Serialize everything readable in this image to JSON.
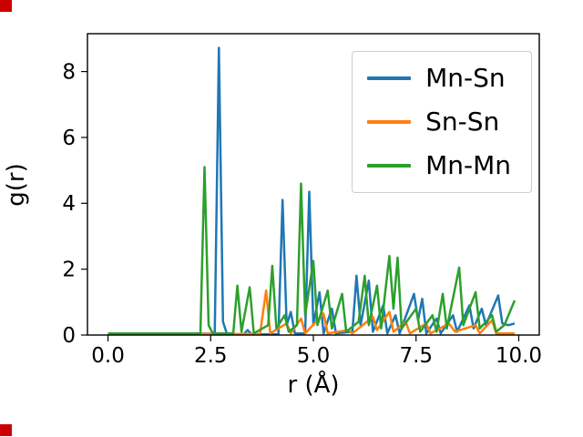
{
  "figure": {
    "background": "#ffffff",
    "corner_marker_color": "#cc0000"
  },
  "chart_data": {
    "type": "line",
    "title": "",
    "xlabel": "r (Å)",
    "ylabel": "g(r)",
    "xlim": [
      -0.5,
      10.5
    ],
    "ylim": [
      0,
      9.15
    ],
    "xticks": [
      0.0,
      2.5,
      5.0,
      7.5,
      10.0
    ],
    "xticklabels": [
      "0.0",
      "2.5",
      "5.0",
      "7.5",
      "10.0"
    ],
    "yticks": [
      0,
      2,
      4,
      6,
      8
    ],
    "yticklabels": [
      "0",
      "2",
      "4",
      "6",
      "8"
    ],
    "grid": false,
    "legend_position": "upper right",
    "series": [
      {
        "name": "Mn-Sn",
        "color": "#1f77b4",
        "points": [
          [
            0,
            0.04
          ],
          [
            2.55,
            0.04
          ],
          [
            2.6,
            0.1
          ],
          [
            2.7,
            8.72
          ],
          [
            2.8,
            0.4
          ],
          [
            2.9,
            0.02
          ],
          [
            3.3,
            0.02
          ],
          [
            3.4,
            0.15
          ],
          [
            3.5,
            0.02
          ],
          [
            4.15,
            0.02
          ],
          [
            4.25,
            4.1
          ],
          [
            4.35,
            0.3
          ],
          [
            4.45,
            0.7
          ],
          [
            4.55,
            0.05
          ],
          [
            4.8,
            0.05
          ],
          [
            4.9,
            4.35
          ],
          [
            5.0,
            0.3
          ],
          [
            5.15,
            1.3
          ],
          [
            5.25,
            0.05
          ],
          [
            5.45,
            0.8
          ],
          [
            5.55,
            0.05
          ],
          [
            5.95,
            0.1
          ],
          [
            6.05,
            1.8
          ],
          [
            6.15,
            0.3
          ],
          [
            6.35,
            1.65
          ],
          [
            6.45,
            0.1
          ],
          [
            6.7,
            0.9
          ],
          [
            6.8,
            0.05
          ],
          [
            7.0,
            0.6
          ],
          [
            7.1,
            0.05
          ],
          [
            7.45,
            1.25
          ],
          [
            7.55,
            0.45
          ],
          [
            7.65,
            1.1
          ],
          [
            7.75,
            0.05
          ],
          [
            8.0,
            0.5
          ],
          [
            8.1,
            0.05
          ],
          [
            8.4,
            0.6
          ],
          [
            8.5,
            0.1
          ],
          [
            8.8,
            0.9
          ],
          [
            8.9,
            0.2
          ],
          [
            9.1,
            0.8
          ],
          [
            9.2,
            0.3
          ],
          [
            9.5,
            1.2
          ],
          [
            9.6,
            0.35
          ],
          [
            9.75,
            0.3
          ],
          [
            9.9,
            0.35
          ]
        ]
      },
      {
        "name": "Sn-Sn",
        "color": "#ff7f0e",
        "points": [
          [
            0,
            0.03
          ],
          [
            3.7,
            0.03
          ],
          [
            3.85,
            1.35
          ],
          [
            3.95,
            0.05
          ],
          [
            4.35,
            0.35
          ],
          [
            4.45,
            0.05
          ],
          [
            4.7,
            0.5
          ],
          [
            4.8,
            0.05
          ],
          [
            5.25,
            0.65
          ],
          [
            5.35,
            0.05
          ],
          [
            5.85,
            0.15
          ],
          [
            5.95,
            0.05
          ],
          [
            6.45,
            0.55
          ],
          [
            6.55,
            0.15
          ],
          [
            6.85,
            0.7
          ],
          [
            6.95,
            0.1
          ],
          [
            7.25,
            0.4
          ],
          [
            7.35,
            0.05
          ],
          [
            7.75,
            0.35
          ],
          [
            7.85,
            0.05
          ],
          [
            8.3,
            0.35
          ],
          [
            8.45,
            0.1
          ],
          [
            8.95,
            0.3
          ],
          [
            9.05,
            0.05
          ],
          [
            9.35,
            0.45
          ],
          [
            9.45,
            0.05
          ],
          [
            9.9,
            0.05
          ]
        ]
      },
      {
        "name": "Mn-Mn",
        "color": "#2ca02c",
        "points": [
          [
            0,
            0.05
          ],
          [
            2.25,
            0.05
          ],
          [
            2.35,
            5.1
          ],
          [
            2.45,
            0.3
          ],
          [
            2.55,
            0.05
          ],
          [
            3.05,
            0.05
          ],
          [
            3.15,
            1.5
          ],
          [
            3.25,
            0.1
          ],
          [
            3.45,
            1.45
          ],
          [
            3.55,
            0.05
          ],
          [
            3.9,
            0.3
          ],
          [
            4.0,
            2.1
          ],
          [
            4.1,
            0.2
          ],
          [
            4.3,
            0.6
          ],
          [
            4.4,
            0.1
          ],
          [
            4.6,
            0.3
          ],
          [
            4.7,
            4.6
          ],
          [
            4.8,
            0.6
          ],
          [
            5.0,
            2.25
          ],
          [
            5.1,
            0.3
          ],
          [
            5.35,
            1.35
          ],
          [
            5.45,
            0.2
          ],
          [
            5.7,
            1.25
          ],
          [
            5.8,
            0.1
          ],
          [
            6.1,
            0.4
          ],
          [
            6.25,
            1.8
          ],
          [
            6.35,
            0.3
          ],
          [
            6.55,
            1.5
          ],
          [
            6.65,
            0.2
          ],
          [
            6.85,
            2.4
          ],
          [
            6.95,
            0.8
          ],
          [
            7.05,
            2.35
          ],
          [
            7.15,
            0.2
          ],
          [
            7.5,
            0.8
          ],
          [
            7.6,
            0.1
          ],
          [
            7.9,
            0.6
          ],
          [
            8.0,
            0.1
          ],
          [
            8.15,
            1.25
          ],
          [
            8.25,
            0.2
          ],
          [
            8.55,
            2.05
          ],
          [
            8.65,
            0.3
          ],
          [
            8.95,
            1.3
          ],
          [
            9.05,
            0.2
          ],
          [
            9.35,
            0.6
          ],
          [
            9.45,
            0.1
          ],
          [
            9.65,
            0.3
          ],
          [
            9.9,
            1.05
          ]
        ]
      }
    ]
  }
}
